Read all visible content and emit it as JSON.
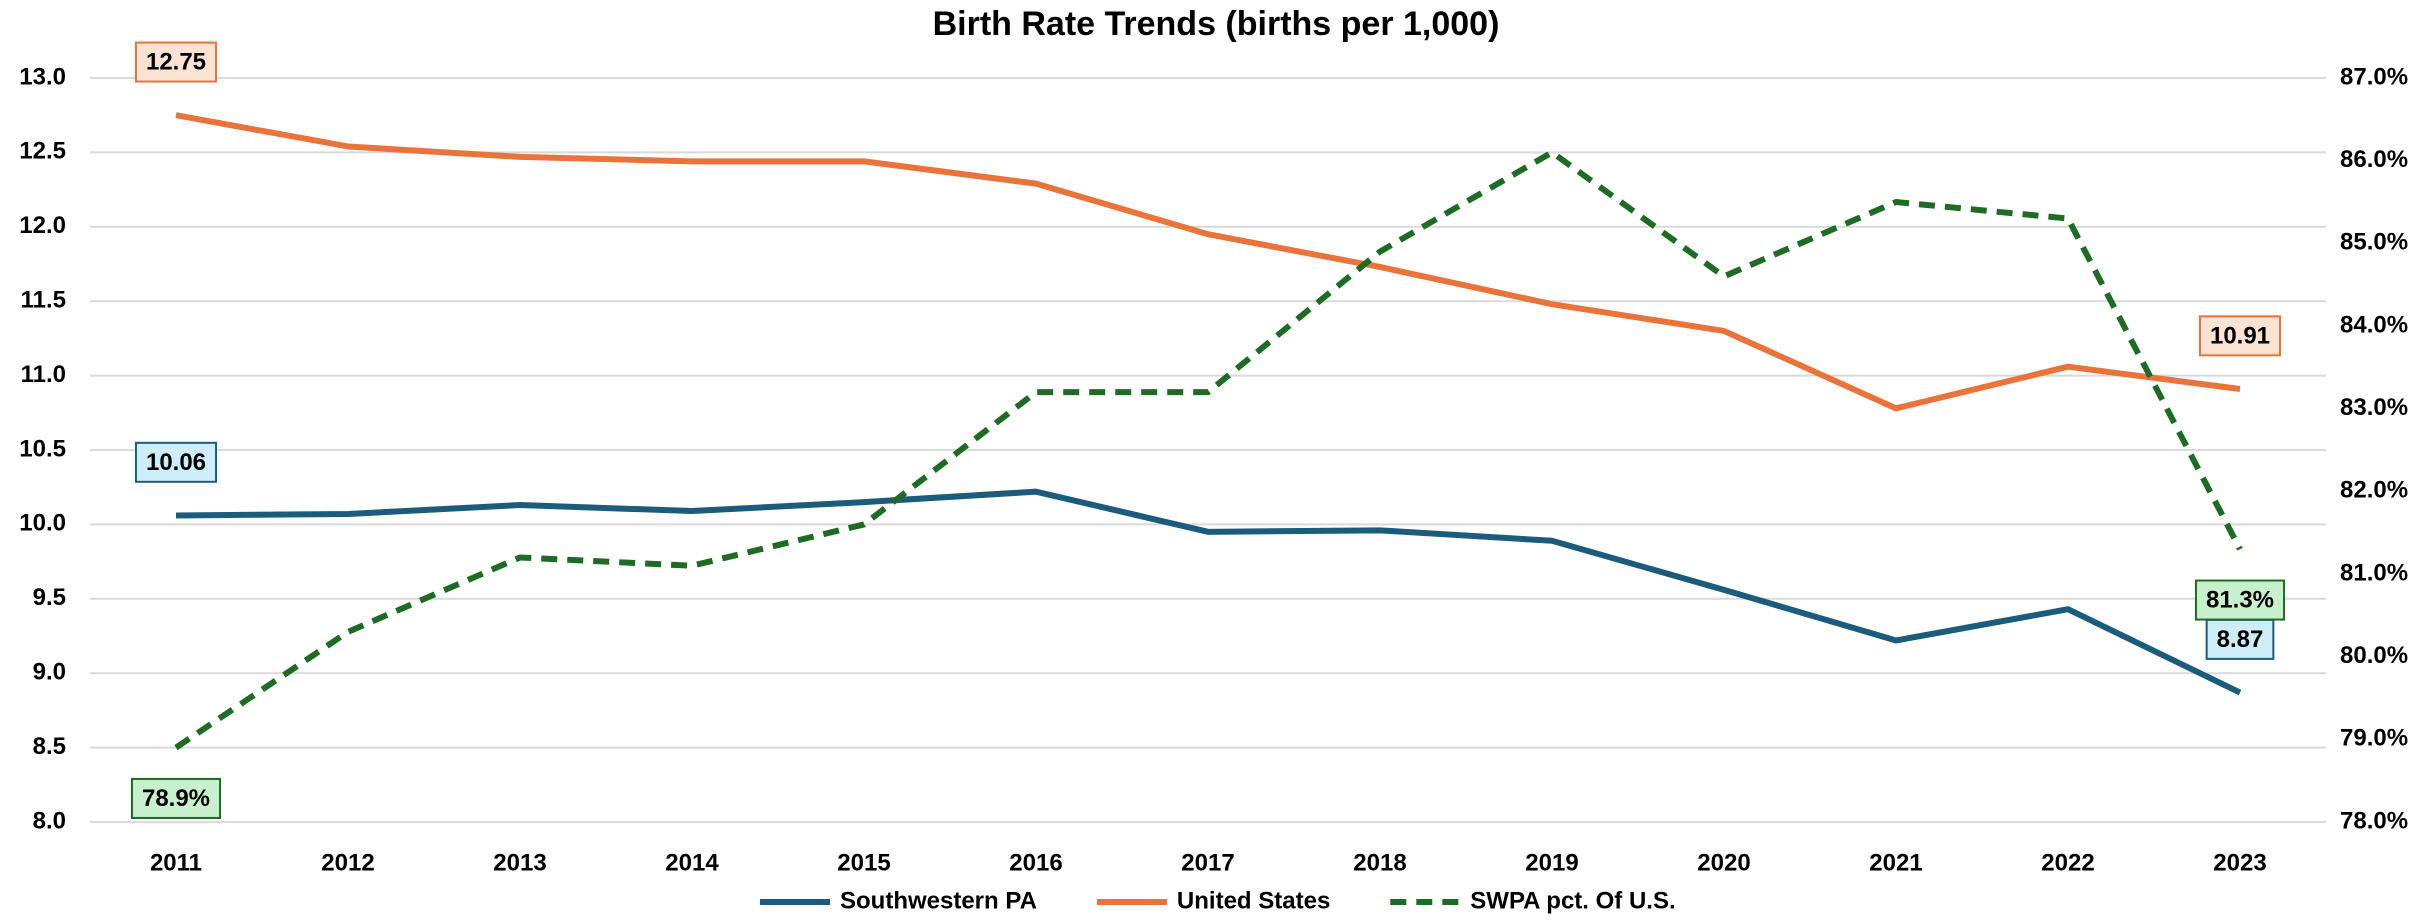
{
  "chart_data": {
    "type": "line",
    "title": "Birth Rate Trends (births per 1,000)",
    "categories": [
      "2011",
      "2012",
      "2013",
      "2014",
      "2015",
      "2016",
      "2017",
      "2018",
      "2019",
      "2020",
      "2021",
      "2022",
      "2023"
    ],
    "series": [
      {
        "name": "Southwestern PA",
        "color": "#1b5b7c",
        "axis": "y",
        "dash": false,
        "label_position": "above",
        "label_fill": "#cdeef8",
        "labeled_points": [
          0,
          12
        ],
        "values": [
          10.06,
          10.07,
          10.13,
          10.09,
          10.15,
          10.22,
          9.95,
          9.96,
          9.89,
          9.56,
          9.22,
          9.43,
          8.87
        ]
      },
      {
        "name": "United States",
        "color": "#e8743b",
        "axis": "y",
        "dash": false,
        "label_position": "above",
        "label_fill": "#fbe3d3",
        "labeled_points": [
          0,
          12
        ],
        "values": [
          12.75,
          12.54,
          12.47,
          12.44,
          12.44,
          12.29,
          11.95,
          11.73,
          11.48,
          11.3,
          10.78,
          11.06,
          10.91
        ]
      },
      {
        "name": "SWPA pct. Of U.S.",
        "color": "#1e6b23",
        "axis": "y2",
        "dash": true,
        "label_position": "below",
        "label_fill": "#c8f0cd",
        "labeled_points": [
          0,
          12
        ],
        "values": [
          78.9,
          80.3,
          81.2,
          81.1,
          81.6,
          83.2,
          83.2,
          84.9,
          86.1,
          84.6,
          85.5,
          85.3,
          81.3
        ],
        "value_labels": [
          "78.9%",
          null,
          null,
          null,
          null,
          null,
          null,
          null,
          null,
          null,
          null,
          null,
          "81.3%"
        ]
      }
    ],
    "ylim": [
      8,
      13
    ],
    "yticks": [
      {
        "value": 8,
        "label": "8.0"
      },
      8.5,
      {
        "value": 9,
        "label": "9.0"
      },
      9.5,
      {
        "value": 10,
        "label": "10.0"
      },
      10.5,
      {
        "value": 11,
        "label": "11.0"
      },
      11.5,
      {
        "value": 12,
        "label": "12.0"
      },
      12.5,
      {
        "value": 13,
        "label": "13.0"
      }
    ],
    "y2lim": [
      78,
      87
    ],
    "y2ticks": [
      {
        "value": 78,
        "label": "78.0%"
      },
      {
        "value": 79,
        "label": "79.0%"
      },
      {
        "value": 80,
        "label": "80.0%"
      },
      {
        "value": 81,
        "label": "81.0%"
      },
      {
        "value": 82,
        "label": "82.0%"
      },
      {
        "value": 83,
        "label": "83.0%"
      },
      {
        "value": 84,
        "label": "84.0%"
      },
      {
        "value": 85,
        "label": "85.0%"
      },
      {
        "value": 86,
        "label": "86.0%"
      },
      {
        "value": 87,
        "label": "87.0%"
      }
    ],
    "grid": true,
    "legend": "bottom"
  }
}
